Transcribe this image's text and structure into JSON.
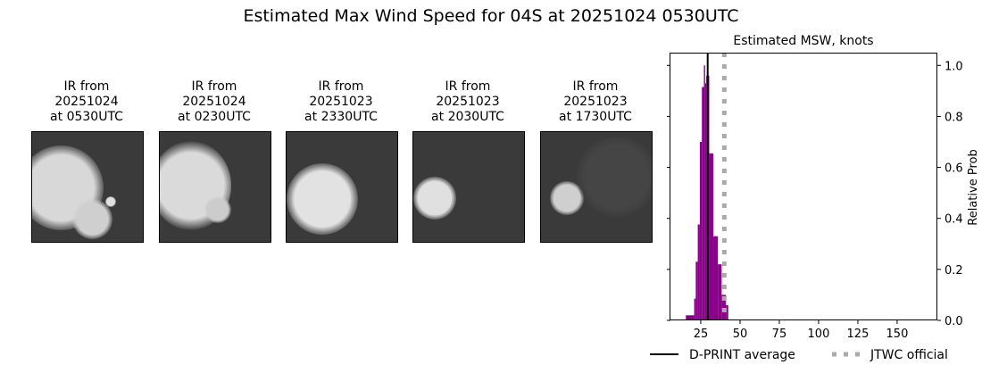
{
  "title": "Estimated Max Wind Speed for 04S at 20251024 0530UTC",
  "panels": [
    {
      "l1": "IR from",
      "l2": "20251024",
      "l3": "at 0530UTC"
    },
    {
      "l1": "IR from",
      "l2": "20251024",
      "l3": "at 0230UTC"
    },
    {
      "l1": "IR from",
      "l2": "20251023",
      "l3": "at 2330UTC"
    },
    {
      "l1": "IR from",
      "l2": "20251023",
      "l3": "at 2030UTC"
    },
    {
      "l1": "IR from",
      "l2": "20251023",
      "l3": "at 1730UTC"
    }
  ],
  "chart_data": {
    "type": "bar",
    "title": "Estimated MSW, knots",
    "ylabel": "Relative Prob",
    "xlim": [
      5.7,
      175.6
    ],
    "ylim": [
      0,
      1.05
    ],
    "xticks": [
      25,
      50,
      75,
      100,
      125,
      150
    ],
    "yticks": [
      "0.0",
      "0.2",
      "0.4",
      "0.6",
      "0.8",
      "1.0"
    ],
    "bin_edges": [
      15.5,
      20.8,
      21.8,
      23.1,
      24.4,
      25.7,
      27.0,
      27.8,
      28.5,
      30.4,
      33.0,
      35.9,
      38.3,
      41.0,
      42.5
    ],
    "values": [
      0.02,
      0.085,
      0.23,
      0.376,
      0.7,
      0.915,
      1.0,
      0.93,
      0.96,
      0.655,
      0.33,
      0.22,
      0.1,
      0.06
    ],
    "bar_color": "#8b008b",
    "dprint_average": 29.4,
    "jtwc_official": 40,
    "legend": {
      "dprint": "D-PRINT average",
      "jtwc": "JTWC official"
    },
    "legend_placement": "bottom"
  }
}
